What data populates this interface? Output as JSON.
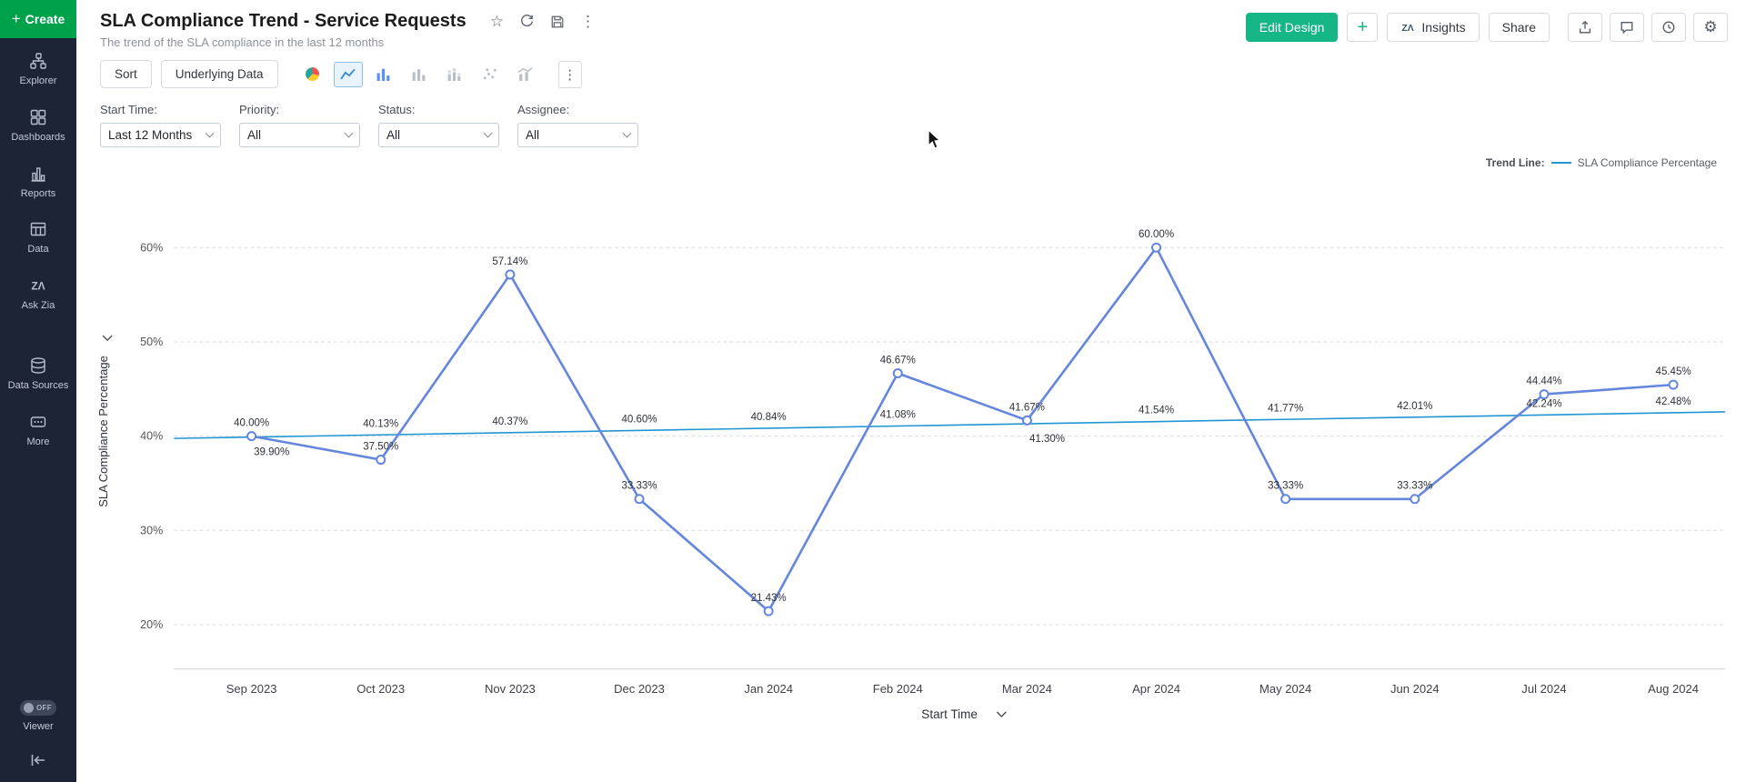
{
  "colors": {
    "brand_green": "#00a14b",
    "edit_design_green": "#16b687",
    "selected_chart_bg": "#e8f3fc",
    "main_line": "#6487dd",
    "trend_line": "#2196d3"
  },
  "sidebar": {
    "create_label": "Create",
    "items": [
      {
        "label": "Explorer",
        "icon": "explorer-icon"
      },
      {
        "label": "Dashboards",
        "icon": "dashboards-icon"
      },
      {
        "label": "Reports",
        "icon": "reports-icon"
      },
      {
        "label": "Data",
        "icon": "data-icon"
      },
      {
        "label": "Ask Zia",
        "icon": "zia-icon"
      },
      {
        "label": "Data Sources",
        "icon": "data-sources-icon"
      },
      {
        "label": "More",
        "icon": "more-icon"
      }
    ],
    "viewer_label": "Viewer",
    "viewer_toggle": "OFF"
  },
  "header": {
    "title": "SLA Compliance Trend - Service Requests",
    "subtitle": "The trend of the SLA compliance in the last 12 months",
    "edit_design": "Edit Design",
    "insights": "Insights",
    "share": "Share"
  },
  "toolbar": {
    "sort": "Sort",
    "underlying_data": "Underlying Data"
  },
  "filters": [
    {
      "label": "Start Time:",
      "value": "Last 12 Months"
    },
    {
      "label": "Priority:",
      "value": "All"
    },
    {
      "label": "Status:",
      "value": "All"
    },
    {
      "label": "Assignee:",
      "value": "All"
    }
  ],
  "legend": {
    "title": "Trend Line:",
    "series": "SLA Compliance Percentage"
  },
  "chart_data": {
    "type": "line",
    "title": "SLA Compliance Trend - Service Requests",
    "categories": [
      "Sep 2023",
      "Oct 2023",
      "Nov 2023",
      "Dec 2023",
      "Jan 2024",
      "Feb 2024",
      "Mar 2024",
      "Apr 2024",
      "May 2024",
      "Jun 2024",
      "Jul 2024",
      "Aug 2024"
    ],
    "series": [
      {
        "name": "SLA Compliance Percentage",
        "type": "line",
        "color": "#6487dd",
        "values": [
          40.0,
          37.5,
          57.14,
          33.33,
          21.43,
          46.67,
          41.67,
          60.0,
          33.33,
          33.33,
          44.44,
          45.45
        ]
      },
      {
        "name": "Trend Line",
        "type": "trend",
        "color": "#2196d3",
        "values": [
          39.9,
          40.13,
          40.37,
          40.6,
          40.84,
          41.08,
          41.3,
          41.54,
          41.77,
          42.01,
          42.24,
          42.48
        ]
      }
    ],
    "xlabel": "Start Time",
    "ylabel": "SLA Compliance Percentage",
    "yticks": [
      20,
      30,
      40,
      50,
      60
    ],
    "ytick_format": "percent",
    "ylim": [
      18,
      63
    ],
    "grid": "dashed-horizontal",
    "legend_position": "top-right"
  }
}
